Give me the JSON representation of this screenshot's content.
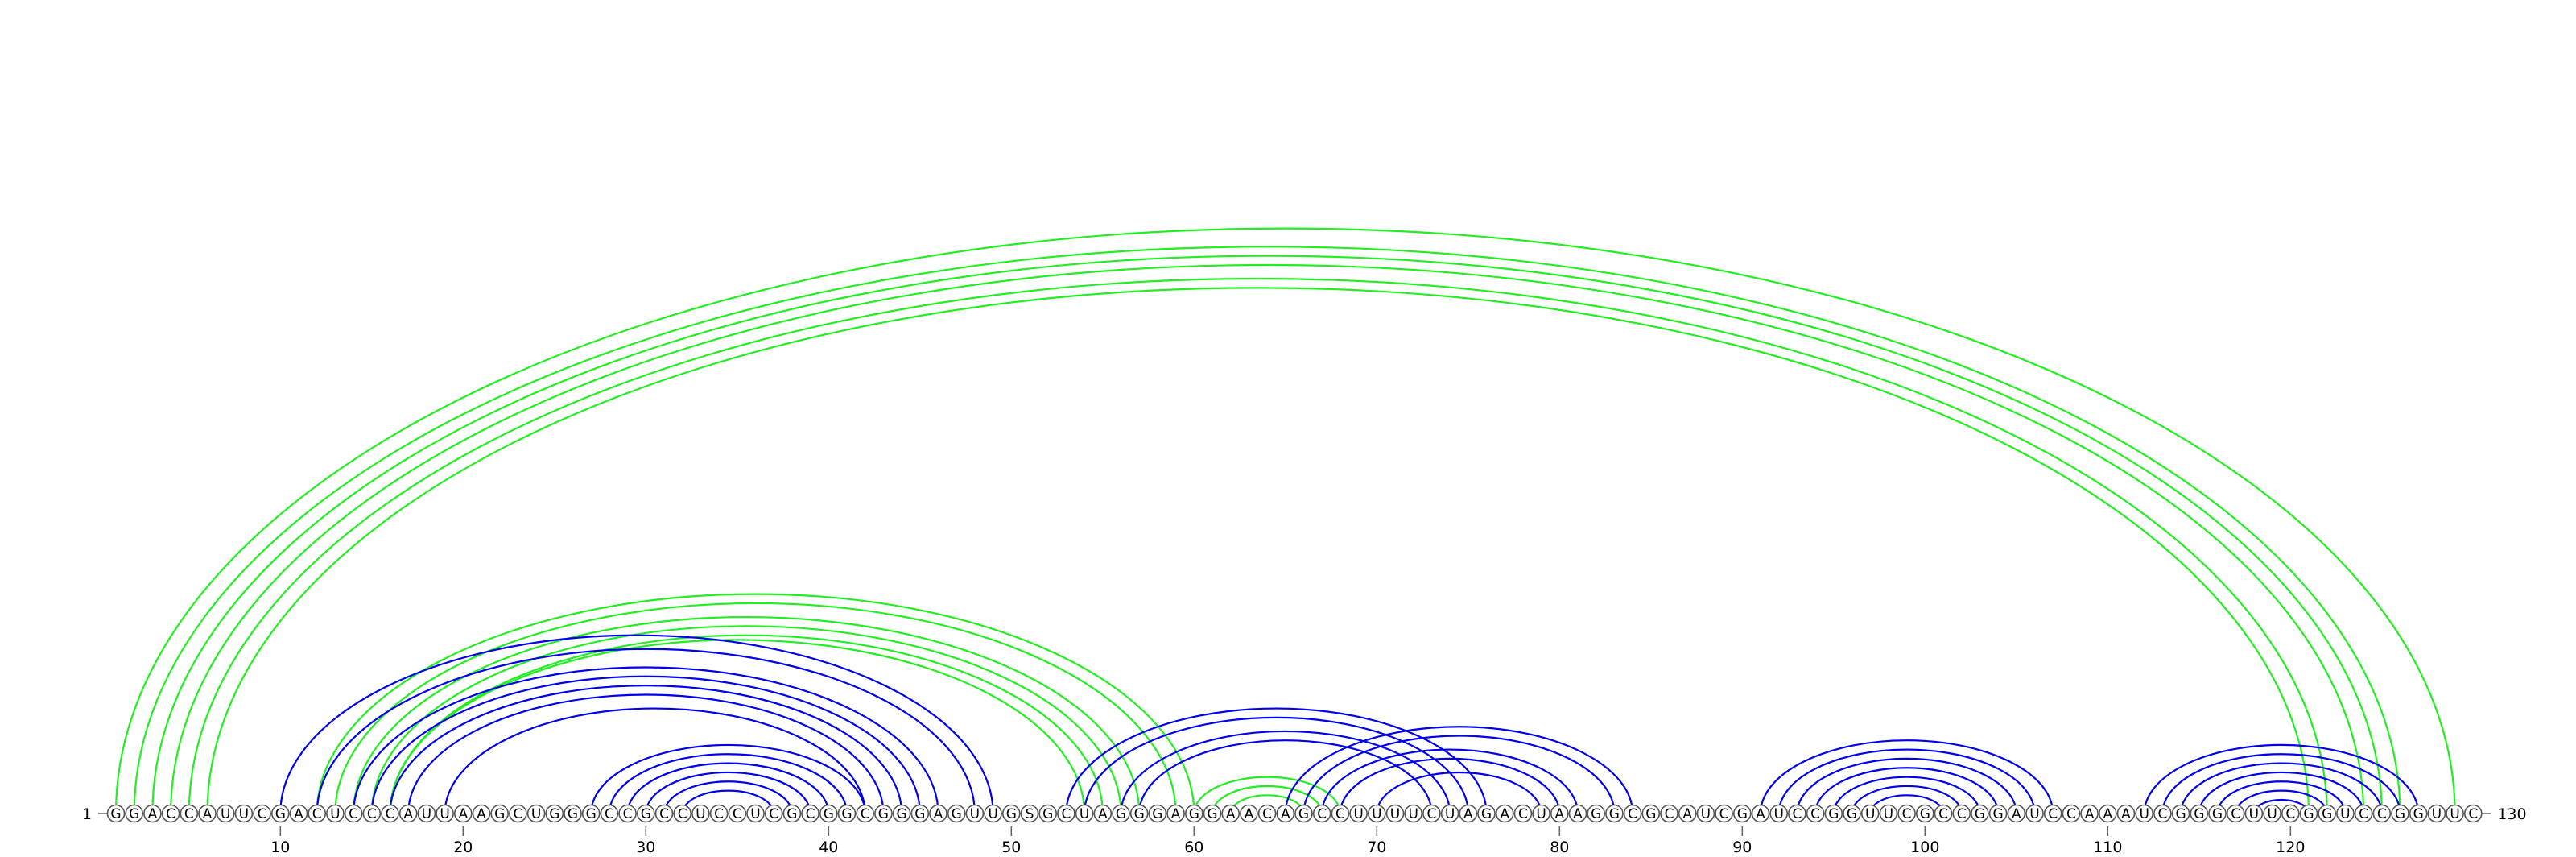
{
  "sequence": "GGACCAUUCGACUCCCAUUAAGCUGGGCCGCCUCCUCGCGGCGGGAGUUGSGCUAGGGAGGAACAGCCUUUUCUAGACUAAGGCGCAUCGAUCCGGUUCGCCGGAUCCAAAUCGGGCUUCGGUCCGGUUC",
  "labels": {
    "start": "1",
    "end": "130",
    "ticks": [
      "10",
      "20",
      "30",
      "40",
      "50",
      "60",
      "70",
      "80",
      "90",
      "100",
      "110",
      "120"
    ]
  },
  "colors": {
    "structure_a": "#0000ee",
    "structure_b": "#22ee22"
  },
  "chart_data": {
    "type": "arc-diagram",
    "length": 130,
    "tick_positions": [
      10,
      20,
      30,
      40,
      50,
      60,
      70,
      80,
      90,
      100,
      110,
      120
    ],
    "arcs_structure_a": [
      [
        10,
        49
      ],
      [
        12,
        48
      ],
      [
        14,
        46
      ],
      [
        15,
        45
      ],
      [
        16,
        44
      ],
      [
        17,
        43
      ],
      [
        19,
        42
      ],
      [
        27,
        42
      ],
      [
        28,
        41
      ],
      [
        29,
        40
      ],
      [
        30,
        39
      ],
      [
        31,
        38
      ],
      [
        32,
        37
      ],
      [
        53,
        76
      ],
      [
        54,
        75
      ],
      [
        56,
        74
      ],
      [
        57,
        73
      ],
      [
        65,
        84
      ],
      [
        66,
        83
      ],
      [
        67,
        81
      ],
      [
        68,
        80
      ],
      [
        70,
        79
      ],
      [
        91,
        107
      ],
      [
        92,
        106
      ],
      [
        93,
        105
      ],
      [
        94,
        104
      ],
      [
        95,
        103
      ],
      [
        96,
        102
      ],
      [
        97,
        101
      ],
      [
        112,
        127
      ],
      [
        113,
        126
      ],
      [
        114,
        125
      ],
      [
        115,
        124
      ],
      [
        116,
        123
      ],
      [
        117,
        122
      ],
      [
        118,
        121
      ]
    ],
    "arcs_structure_b": [
      [
        1,
        129
      ],
      [
        2,
        126
      ],
      [
        3,
        125
      ],
      [
        4,
        124
      ],
      [
        5,
        122
      ],
      [
        6,
        121
      ],
      [
        12,
        60
      ],
      [
        13,
        59
      ],
      [
        14,
        57
      ],
      [
        15,
        56
      ],
      [
        16,
        55
      ],
      [
        16,
        54
      ],
      [
        60,
        68
      ],
      [
        61,
        67
      ],
      [
        62,
        66
      ]
    ]
  }
}
